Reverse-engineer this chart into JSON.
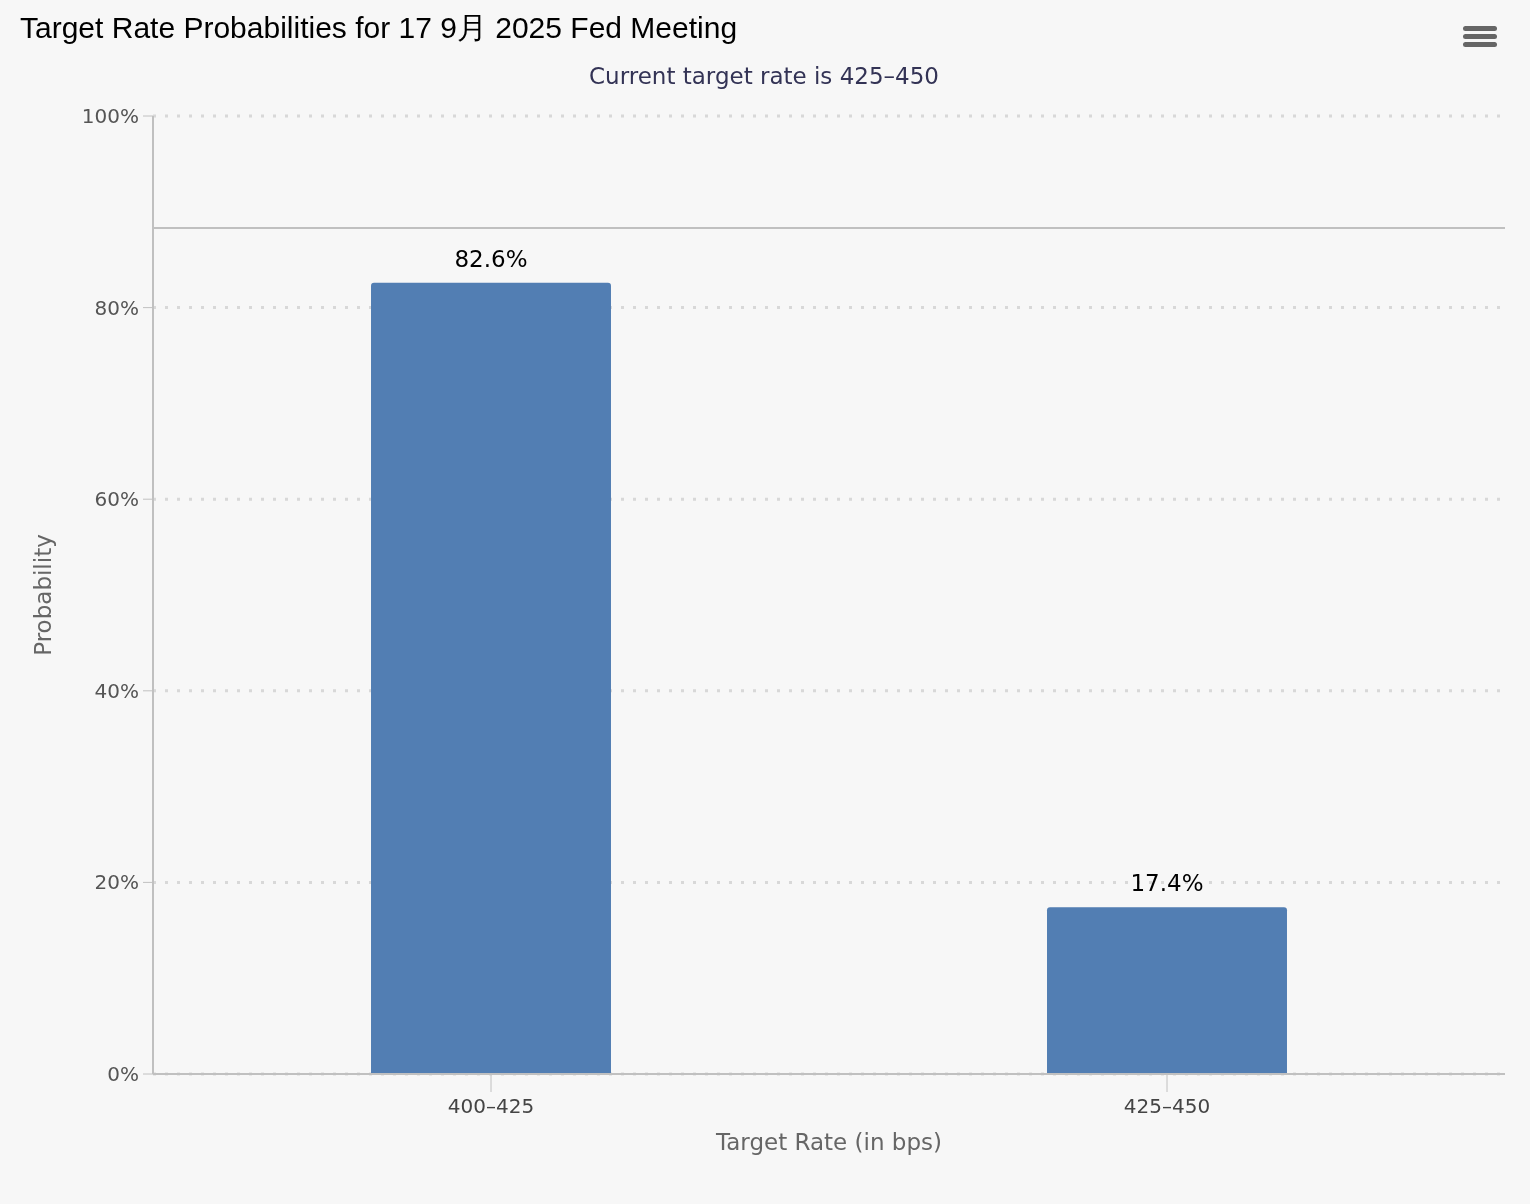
{
  "chart_data": {
    "type": "bar",
    "title": "Target Rate Probabilities for 17 9月 2025 Fed Meeting",
    "subtitle": "Current target rate is 425–450",
    "xlabel": "Target Rate (in bps)",
    "ylabel": "Probability",
    "categories": [
      "400–425",
      "425–450"
    ],
    "values": [
      82.6,
      17.4
    ],
    "color": "#527eb3",
    "value_labels": [
      "82.6%",
      "17.4%"
    ],
    "ylim": [
      0,
      100
    ],
    "yticks": [
      {
        "value": 0,
        "label": "0%"
      },
      {
        "value": 20,
        "label": "20%"
      },
      {
        "value": 40,
        "label": "40%"
      },
      {
        "value": 60,
        "label": "60%"
      },
      {
        "value": 80,
        "label": "80%"
      },
      {
        "value": 100,
        "label": "100%"
      }
    ],
    "ref_lines": [
      {
        "axis": "y",
        "value": 88.3,
        "label": null,
        "color": "#c0c0c0",
        "line_style": "solid"
      }
    ],
    "grid": "y"
  }
}
